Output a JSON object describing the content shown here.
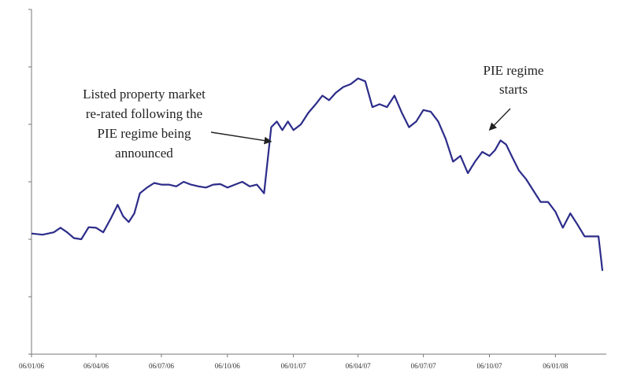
{
  "chart_data": {
    "type": "line",
    "title": "",
    "xlabel": "",
    "ylabel": "",
    "x_tick_labels": [
      "06/01/06",
      "06/04/06",
      "06/07/06",
      "06/10/06",
      "06/01/07",
      "06/04/07",
      "06/07/07",
      "06/10/07",
      "06/01/08"
    ],
    "x_range": [
      "06/01/06",
      "06/03/08"
    ],
    "y_range": [
      0,
      6
    ],
    "y_tick_count": 6,
    "grid": false,
    "legend": "none",
    "series": [
      {
        "color": "#2c2c8a",
        "points": [
          [
            "06/01/06",
            2.1
          ],
          [
            "06/01/06",
            2.08
          ],
          [
            "06/02/06",
            2.12
          ],
          [
            "06/02/06",
            2.2
          ],
          [
            "06/02/06",
            2.12
          ],
          [
            "06/03/06",
            2.02
          ],
          [
            "06/03/06",
            2.0
          ],
          [
            "06/03/06",
            2.21
          ],
          [
            "06/04/06",
            2.2
          ],
          [
            "06/04/06",
            2.12
          ],
          [
            "06/04/06",
            2.35
          ],
          [
            "06/05/06",
            2.6
          ],
          [
            "06/05/06",
            2.4
          ],
          [
            "06/05/06",
            2.3
          ],
          [
            "06/05/06",
            2.45
          ],
          [
            "06/06/06",
            2.8
          ],
          [
            "06/06/06",
            2.9
          ],
          [
            "06/06/06",
            2.98
          ],
          [
            "06/07/06",
            2.95
          ],
          [
            "06/07/06",
            2.95
          ],
          [
            "06/07/06",
            2.92
          ],
          [
            "06/08/06",
            3.0
          ],
          [
            "06/08/06",
            2.95
          ],
          [
            "06/08/06",
            2.92
          ],
          [
            "06/09/06",
            2.9
          ],
          [
            "06/09/06",
            2.95
          ],
          [
            "06/09/06",
            2.96
          ],
          [
            "06/10/06",
            2.9
          ],
          [
            "06/10/06",
            2.95
          ],
          [
            "06/10/06",
            3.0
          ],
          [
            "06/11/06",
            2.92
          ],
          [
            "06/11/06",
            2.95
          ],
          [
            "06/11/06",
            2.8
          ],
          [
            "06/12/06",
            3.95
          ],
          [
            "06/12/06",
            4.05
          ],
          [
            "06/12/06",
            3.9
          ],
          [
            "06/12/06",
            4.05
          ],
          [
            "06/01/07",
            3.9
          ],
          [
            "06/01/07",
            4.0
          ],
          [
            "06/01/07",
            4.2
          ],
          [
            "06/02/07",
            4.35
          ],
          [
            "06/02/07",
            4.5
          ],
          [
            "06/02/07",
            4.42
          ],
          [
            "06/03/07",
            4.55
          ],
          [
            "06/03/07",
            4.65
          ],
          [
            "06/03/07",
            4.7
          ],
          [
            "06/04/07",
            4.8
          ],
          [
            "06/04/07",
            4.75
          ],
          [
            "06/04/07",
            4.3
          ],
          [
            "06/05/07",
            4.35
          ],
          [
            "06/05/07",
            4.3
          ],
          [
            "06/05/07",
            4.5
          ],
          [
            "06/06/07",
            4.2
          ],
          [
            "06/06/07",
            3.95
          ],
          [
            "06/06/07",
            4.05
          ],
          [
            "06/07/07",
            4.25
          ],
          [
            "06/07/07",
            4.22
          ],
          [
            "06/07/07",
            4.05
          ],
          [
            "06/08/07",
            3.75
          ],
          [
            "06/08/07",
            3.35
          ],
          [
            "06/08/07",
            3.45
          ],
          [
            "06/09/07",
            3.15
          ],
          [
            "06/09/07",
            3.35
          ],
          [
            "06/09/07",
            3.52
          ],
          [
            "06/10/07",
            3.45
          ],
          [
            "06/10/07",
            3.55
          ],
          [
            "06/10/07",
            3.72
          ],
          [
            "06/10/07",
            3.65
          ],
          [
            "06/11/07",
            3.45
          ],
          [
            "06/11/07",
            3.2
          ],
          [
            "06/11/07",
            3.05
          ],
          [
            "06/12/07",
            2.85
          ],
          [
            "06/12/07",
            2.65
          ],
          [
            "06/12/07",
            2.65
          ],
          [
            "06/01/08",
            2.48
          ],
          [
            "06/01/08",
            2.2
          ],
          [
            "06/01/08",
            2.45
          ],
          [
            "06/02/08",
            2.25
          ],
          [
            "06/02/08",
            2.05
          ],
          [
            "06/02/08",
            2.05
          ],
          [
            "06/03/08",
            2.05
          ],
          [
            "06/03/08",
            1.45
          ]
        ]
      }
    ],
    "annotations": [
      {
        "lines": [
          "Listed property market",
          "re-rated following the",
          "PIE regime being",
          "announced"
        ],
        "arrow_to": [
          "06/12/06",
          3.7
        ]
      },
      {
        "lines": [
          "PIE regime",
          "starts"
        ],
        "arrow_to": [
          "06/10/07",
          3.9
        ]
      }
    ]
  }
}
